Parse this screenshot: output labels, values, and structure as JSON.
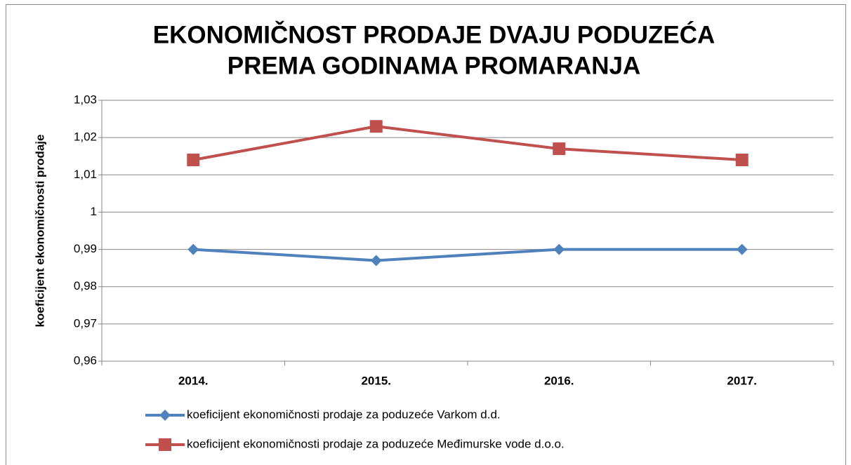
{
  "chart_data": {
    "type": "line",
    "title": [
      "EKONOMIČNOST PRODAJE DVAJU PODUZEĆA",
      "PREMA GODINAMA PROMARANJA"
    ],
    "y_label": "koeficijent ekonomičnosti prodaje",
    "categories": [
      "2014.",
      "2015.",
      "2016.",
      "2017."
    ],
    "series": [
      {
        "name": "koeficijent ekonomičnosti prodaje za poduzeće Varkom d.d.",
        "color": "#4f81bd",
        "marker": "diamond",
        "values": [
          0.99,
          0.987,
          0.99,
          0.99
        ]
      },
      {
        "name": "koeficijent ekonomičnosti prodaje za poduzeće Međimurske vode d.o.o.",
        "color": "#c0504d",
        "marker": "square",
        "values": [
          1.014,
          1.023,
          1.017,
          1.014
        ]
      }
    ],
    "ylim": [
      0.96,
      1.03
    ],
    "yticks": [
      {
        "value": 0.96,
        "label": "0,96"
      },
      {
        "value": 0.97,
        "label": "0,97"
      },
      {
        "value": 0.98,
        "label": "0,98"
      },
      {
        "value": 0.99,
        "label": "0,99"
      },
      1,
      {
        "value": 1.01,
        "label": "1,01"
      },
      {
        "value": 1.02,
        "label": "1,02"
      },
      {
        "value": 1.03,
        "label": "1,03"
      }
    ],
    "grid": true,
    "legend": "bottom"
  }
}
